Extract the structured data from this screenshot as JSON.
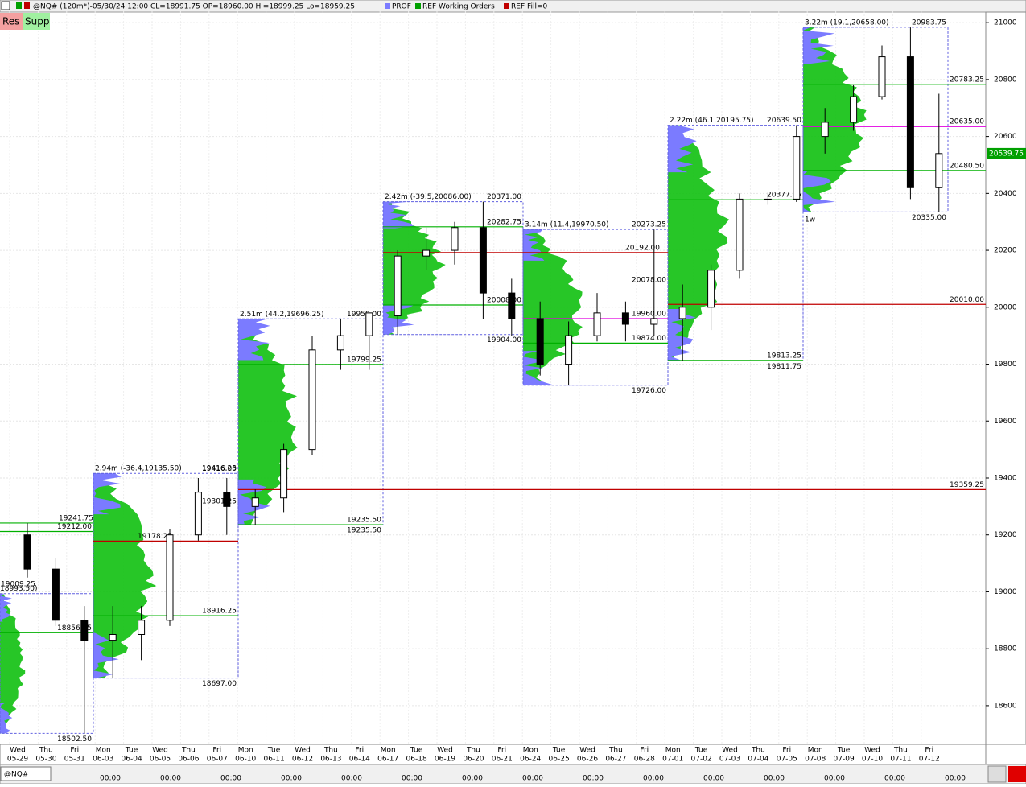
{
  "header": {
    "symbol_info": "@NQ# (120m*)-05/30/24 12:00 CL=18991.75 OP=18960.00 Hi=18999.25 Lo=18959.25",
    "legend": [
      "PROF",
      "REF Working Orders",
      "REF Fill=0"
    ]
  },
  "buttons": [
    "Res",
    "Supp"
  ],
  "symbol_box": "@NQ#",
  "chart_data": {
    "type": "candlestick",
    "ylim": [
      18464,
      21040
    ],
    "yticks": [
      18600,
      18800,
      19000,
      19200,
      19400,
      19600,
      19800,
      20000,
      20200,
      20400,
      20600,
      20800,
      21000
    ],
    "grid": true,
    "last_price": {
      "value": 20539.75,
      "label": "20539.75"
    },
    "days": [
      "Wed",
      "Thu",
      "Fri",
      "Mon",
      "Tue",
      "Wed",
      "Thu",
      "Fri",
      "Mon",
      "Tue",
      "Wed",
      "Thu",
      "Fri",
      "Mon",
      "Tue",
      "Wed",
      "Thu",
      "Fri",
      "Mon",
      "Tue",
      "Wed",
      "Thu",
      "Fri",
      "Mon",
      "Tue",
      "Wed",
      "Thu",
      "Fri",
      "Mon",
      "Tue",
      "Wed",
      "Thu",
      "Fri"
    ],
    "dates": [
      "05-29",
      "05-30",
      "05-31",
      "06-03",
      "06-04",
      "06-05",
      "06-06",
      "06-07",
      "06-10",
      "06-11",
      "06-12",
      "06-13",
      "06-14",
      "06-17",
      "06-18",
      "06-19",
      "06-20",
      "06-21",
      "06-24",
      "06-25",
      "06-26",
      "06-27",
      "06-28",
      "07-01",
      "07-02",
      "07-03",
      "07-04",
      "07-05",
      "07-08",
      "07-09",
      "07-10",
      "07-11",
      "07-12"
    ],
    "open": [
      19200,
      19080,
      18900,
      18830,
      18850,
      18900,
      19200,
      19350,
      19300,
      19330,
      19500,
      19850,
      19900,
      19970,
      20180,
      20200,
      20280,
      20050,
      19960,
      19800,
      19900,
      19980,
      19940,
      19960,
      20000,
      20130,
      20380,
      20380,
      20600,
      20650,
      20740,
      20880,
      20420
    ],
    "high": [
      19241,
      19120,
      18950,
      18950,
      18950,
      19220,
      19400,
      19400,
      19360,
      19520,
      19900,
      19960,
      19960,
      20200,
      20280,
      20300,
      20371,
      20100,
      20020,
      19950,
      20050,
      20020,
      20273,
      20080,
      20150,
      20400,
      20400,
      20640,
      20700,
      20780,
      20920,
      20983,
      20750
    ],
    "low": [
      19050,
      18880,
      18502,
      18697,
      18760,
      18880,
      19180,
      19200,
      19235,
      19280,
      19480,
      19780,
      19780,
      19904,
      20130,
      20150,
      19960,
      19900,
      19760,
      19726,
      19880,
      19880,
      19900,
      19811,
      19920,
      20100,
      20360,
      20370,
      20540,
      20620,
      20730,
      20380,
      20335
    ],
    "close": [
      19080,
      18900,
      18830,
      18850,
      18900,
      19200,
      19350,
      19300,
      19330,
      19500,
      19850,
      19900,
      19980,
      20180,
      20200,
      20280,
      20050,
      19960,
      19800,
      19900,
      19980,
      19940,
      19960,
      20000,
      20130,
      20380,
      20380,
      20600,
      20650,
      20740,
      20880,
      20420,
      20540
    ],
    "time_labels": [
      "00:00",
      "00:00",
      "00:00",
      "00:00",
      "00:00",
      "00:00",
      "00:00",
      "00:00",
      "00:00",
      "00:00",
      "00:00",
      "00:00",
      "00:00",
      "00:00",
      "00:00"
    ],
    "period_label": "1w",
    "weeks": [
      {
        "summary": "18993.50)",
        "high": {
          "value": 18993.5,
          "label": "18993.50"
        },
        "low": {
          "value": 18502.5,
          "label": "18502.50"
        }
      },
      {
        "summary": "2.94m (-36.4,19135.50)",
        "high": {
          "value": 19416.25,
          "label": "19416.25"
        },
        "low": {
          "value": 18697,
          "label": "18697.00"
        }
      },
      {
        "summary": "2.51m (44.2,19696.25)",
        "high": {
          "value": 19959,
          "label": "19959.00"
        },
        "low": {
          "value": 19235.5,
          "label": "19235.50"
        }
      },
      {
        "summary": "2.42m (-39.5,20086.00)",
        "high": {
          "value": 20371,
          "label": "20371.00"
        },
        "low": {
          "value": 19904,
          "label": "19904.00"
        }
      },
      {
        "summary": "3.14m (11.4,19970.50)",
        "high": {
          "value": 20273.25,
          "label": "20273.25"
        },
        "low": {
          "value": 19726,
          "label": "19726.00"
        }
      },
      {
        "summary": "2.22m (46.1,20195.75)",
        "high": {
          "value": 20639.5,
          "label": "20639.50"
        },
        "low": {
          "value": 19811.75,
          "label": "19811.75"
        }
      },
      {
        "summary": "3.22m (19.1,20658.00)",
        "high": {
          "value": 20983.75,
          "label": "20983.75"
        },
        "low": {
          "value": 20335,
          "label": "20335.00"
        }
      }
    ],
    "levels": [
      {
        "value": 19241.75,
        "label": "19241.75",
        "color": "#00b000"
      },
      {
        "value": 19212,
        "label": "19212.00",
        "color": "#00b000"
      },
      {
        "value": 19009.25,
        "label": "19009.25"
      },
      {
        "value": 18856.25,
        "label": "18856.25",
        "color": "#00b000"
      },
      {
        "value": 19178.25,
        "label": "19178.25",
        "color": "#c00000"
      },
      {
        "value": 19416,
        "label": "19416.00"
      },
      {
        "value": 19301.25,
        "label": "19301.25"
      },
      {
        "value": 18916.25,
        "label": "18916.25",
        "color": "#00b000"
      },
      {
        "value": 19235.5,
        "label": "19235.50",
        "color": "#00b000"
      },
      {
        "value": 19799.25,
        "label": "19799.25",
        "color": "#00b000"
      },
      {
        "value": 20282.75,
        "label": "20282.75",
        "color": "#00b000"
      },
      {
        "value": 20008,
        "label": "20008.00",
        "color": "#00b000"
      },
      {
        "value": 20192,
        "label": "20192.00",
        "color": "#c00000"
      },
      {
        "value": 19960,
        "label": "19960.00",
        "color": "#e000e0"
      },
      {
        "value": 19874,
        "label": "19874.00",
        "color": "#00b000"
      },
      {
        "value": 20078,
        "label": "20078.00",
        "color": "#00b000"
      },
      {
        "value": 19813.25,
        "label": "19813.25",
        "color": "#00b000"
      },
      {
        "value": 20377.75,
        "label": "20377.75",
        "color": "#00b000"
      },
      {
        "value": 20010,
        "label": "20010.00",
        "color": "#c00000"
      },
      {
        "value": 19359.25,
        "label": "19359.25",
        "color": "#c00000"
      },
      {
        "value": 20783.25,
        "label": "20783.25",
        "color": "#00b000"
      },
      {
        "value": 20635,
        "label": "20635.00",
        "color": "#e000e0"
      },
      {
        "value": 20480.5,
        "label": "20480.50",
        "color": "#00b000"
      }
    ]
  }
}
